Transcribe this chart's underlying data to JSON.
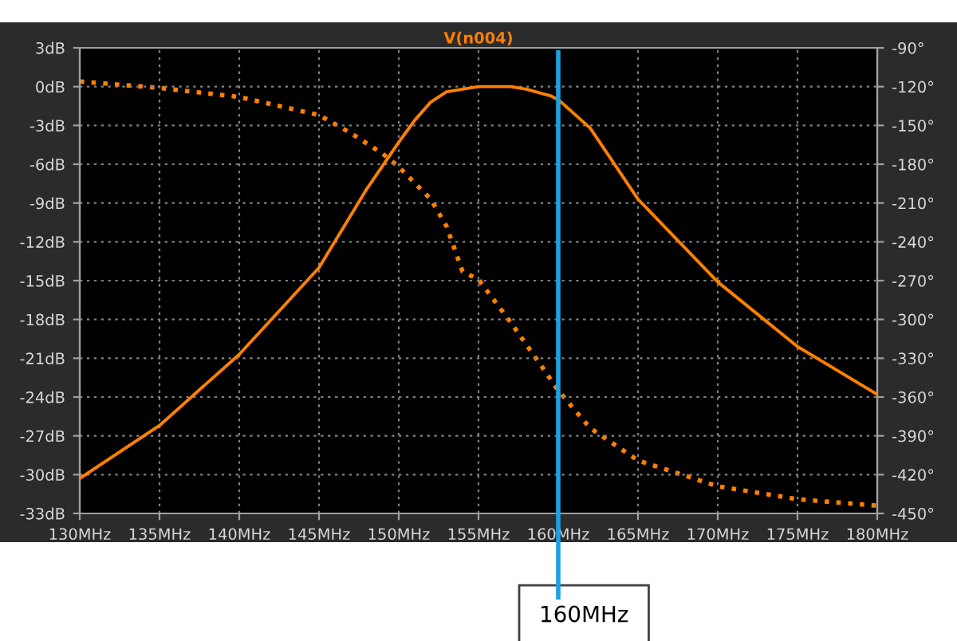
{
  "chart_data": {
    "type": "line",
    "title": "V(n004)",
    "xlim": [
      130,
      180
    ],
    "xticks": [
      {
        "value": 130,
        "label": "130MHz"
      },
      {
        "value": 135,
        "label": "135MHz"
      },
      {
        "value": 140,
        "label": "140MHz"
      },
      {
        "value": 145,
        "label": "145MHz"
      },
      {
        "value": 150,
        "label": "150MHz"
      },
      {
        "value": 155,
        "label": "155MHz"
      },
      {
        "value": 160,
        "label": "160MHz"
      },
      {
        "value": 165,
        "label": "165MHz"
      },
      {
        "value": 170,
        "label": "170MHz"
      },
      {
        "value": 175,
        "label": "175MHz"
      },
      {
        "value": 180,
        "label": "180MHz"
      }
    ],
    "ylim": [
      -33,
      3
    ],
    "yticks": [
      {
        "value": 3,
        "label": "3dB"
      },
      {
        "value": 0,
        "label": "0dB"
      },
      {
        "value": -3,
        "label": "-3dB"
      },
      {
        "value": -6,
        "label": "-6dB"
      },
      {
        "value": -9,
        "label": "-9dB"
      },
      {
        "value": -12,
        "label": "-12dB"
      },
      {
        "value": -15,
        "label": "-15dB"
      },
      {
        "value": -18,
        "label": "-18dB"
      },
      {
        "value": -21,
        "label": "-21dB"
      },
      {
        "value": -24,
        "label": "-24dB"
      },
      {
        "value": -27,
        "label": "-27dB"
      },
      {
        "value": -30,
        "label": "-30dB"
      },
      {
        "value": -33,
        "label": "-33dB"
      }
    ],
    "y2lim": [
      -450,
      -90
    ],
    "y2ticks": [
      {
        "value": -90,
        "label": "-90°"
      },
      {
        "value": -120,
        "label": "-120°"
      },
      {
        "value": -150,
        "label": "-150°"
      },
      {
        "value": -180,
        "label": "-180°"
      },
      {
        "value": -210,
        "label": "-210°"
      },
      {
        "value": -240,
        "label": "-240°"
      },
      {
        "value": -270,
        "label": "-270°"
      },
      {
        "value": -300,
        "label": "-300°"
      },
      {
        "value": -330,
        "label": "-330°"
      },
      {
        "value": -360,
        "label": "-360°"
      },
      {
        "value": -390,
        "label": "-390°"
      },
      {
        "value": -420,
        "label": "-420°"
      },
      {
        "value": -450,
        "label": "-450°"
      }
    ],
    "grid": true,
    "legend": false,
    "series": [
      {
        "color": "#ff8000",
        "line_style": "solid",
        "x": [
          130,
          135,
          140,
          145,
          148,
          150,
          151,
          152,
          153,
          155,
          157,
          158,
          159.5,
          160,
          162,
          165,
          170,
          175,
          180
        ],
        "values": [
          -30.3,
          -26.2,
          -20.7,
          -14.0,
          -7.9,
          -4.3,
          -2.6,
          -1.2,
          -0.4,
          0,
          0,
          -0.2,
          -0.7,
          -1.0,
          -3.2,
          -8.7,
          -15.1,
          -20.1,
          -23.8
        ]
      },
      {
        "color": "#ff8000",
        "line_style": "dotted",
        "axis": "y2",
        "x": [
          130,
          135,
          140,
          145,
          147,
          149,
          150,
          152,
          153,
          154,
          155,
          157,
          159,
          160,
          162,
          165,
          170,
          175,
          180
        ],
        "values": [
          -116,
          -121,
          -128,
          -142,
          -156,
          -172,
          -182,
          -207,
          -228,
          -263,
          -269,
          -302,
          -337,
          -355,
          -384,
          -409,
          -429,
          -439,
          -444
        ]
      }
    ],
    "ref_lines": [
      {
        "axis": "x",
        "value": 160,
        "label": "160MHz",
        "color": "#1ba1e2",
        "line_style": "solid"
      }
    ]
  }
}
